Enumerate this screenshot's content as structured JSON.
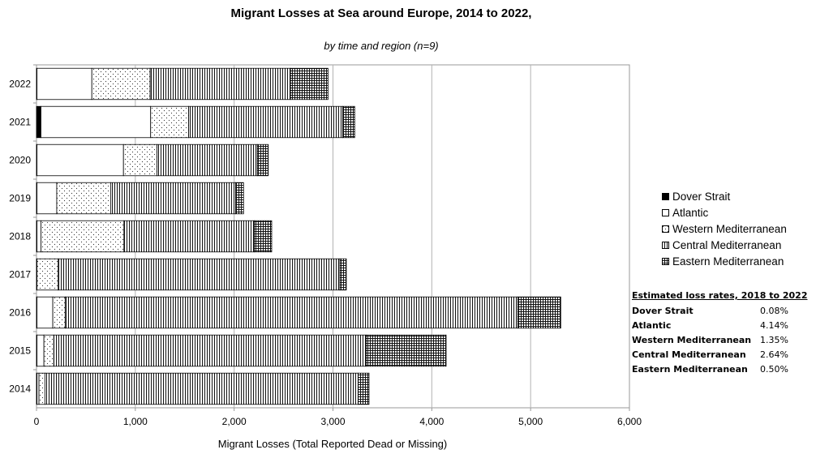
{
  "chart_data": {
    "type": "bar",
    "orientation": "horizontal",
    "stacked": true,
    "title": "Migrant Losses at Sea around Europe, 2014 to 2022,",
    "subtitle": "by time and region (n=9)",
    "xlabel": "Migrant Losses (Total Reported Dead or Missing)",
    "ylabel": "",
    "xlim": [
      0,
      6000
    ],
    "xticks": [
      "0",
      "1,000",
      "2,000",
      "3,000",
      "4,000",
      "5,000",
      "6,000"
    ],
    "grid": true,
    "legend_position": "right",
    "categories": [
      "2022",
      "2021",
      "2020",
      "2019",
      "2018",
      "2017",
      "2016",
      "2015",
      "2014"
    ],
    "series": [
      {
        "name": "Dover Strait",
        "pattern": "solid",
        "values": [
          5,
          45,
          5,
          5,
          5,
          5,
          5,
          5,
          5
        ]
      },
      {
        "name": "Atlantic",
        "pattern": "blank",
        "values": [
          555,
          1110,
          875,
          200,
          40,
          0,
          160,
          70,
          20
        ]
      },
      {
        "name": "Western Mediterranean",
        "pattern": "dots",
        "values": [
          590,
          385,
          340,
          545,
          840,
          215,
          125,
          100,
          60
        ]
      },
      {
        "name": "Central Mediterranean",
        "pattern": "vertical",
        "values": [
          1420,
          1560,
          1015,
          1265,
          1320,
          2850,
          4580,
          3160,
          3170
        ]
      },
      {
        "name": "Eastern Mediterranean",
        "pattern": "grid",
        "values": [
          380,
          120,
          110,
          80,
          175,
          65,
          435,
          810,
          110
        ]
      }
    ]
  },
  "legend": [
    {
      "label": "Dover Strait",
      "swatch": "solid"
    },
    {
      "label": "Atlantic",
      "swatch": "blank"
    },
    {
      "label": "Western Mediterranean",
      "swatch": "dots"
    },
    {
      "label": "Central Mediterranean",
      "swatch": "vertical"
    },
    {
      "label": "Eastern Mediterranean",
      "swatch": "grid"
    }
  ],
  "loss_rates": {
    "title": "Estimated loss rates, 2018 to 2022",
    "rows": [
      {
        "name": "Dover Strait",
        "value": "0.08%"
      },
      {
        "name": "Atlantic",
        "value": "4.14%"
      },
      {
        "name": "Western Mediterranean",
        "value": "1.35%"
      },
      {
        "name": "Central Mediterranean",
        "value": "2.64%"
      },
      {
        "name": "Eastern Mediterranean",
        "value": "0.50%"
      }
    ]
  }
}
